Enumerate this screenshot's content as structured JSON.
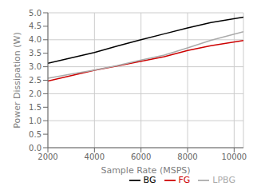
{
  "chart_data": {
    "type": "line",
    "xlabel": "Sample Rate (MSPS)",
    "ylabel": "Power Dissipation (W)",
    "x": [
      2000,
      3000,
      4000,
      5000,
      6000,
      7000,
      8000,
      9000,
      10400
    ],
    "series": [
      {
        "name": "BG",
        "color": "#000000",
        "values": [
          3.13,
          3.33,
          3.53,
          3.77,
          4.0,
          4.22,
          4.44,
          4.64,
          4.84
        ]
      },
      {
        "name": "FG",
        "color": "#cc0000",
        "values": [
          2.47,
          2.67,
          2.87,
          3.03,
          3.2,
          3.37,
          3.6,
          3.78,
          3.97
        ]
      },
      {
        "name": "LPBG",
        "color": "#aaaaaa",
        "values": [
          2.57,
          2.73,
          2.88,
          3.05,
          3.25,
          3.43,
          3.7,
          3.98,
          4.3
        ]
      }
    ],
    "xlim": [
      2000,
      10400
    ],
    "ylim": [
      0,
      5
    ],
    "xticks": [
      2000,
      4000,
      6000,
      8000,
      10000
    ],
    "yticks": [
      {
        "value": 0,
        "label": "0.0"
      },
      0.5,
      {
        "value": 1,
        "label": "1.0"
      },
      1.5,
      {
        "value": 2,
        "label": "2.0"
      },
      2.5,
      {
        "value": 3,
        "label": "3.0"
      },
      3.5,
      {
        "value": 4,
        "label": "4.0"
      },
      4.5,
      {
        "value": 5,
        "label": "5.0"
      }
    ],
    "grid": true,
    "legend": "lower right"
  }
}
